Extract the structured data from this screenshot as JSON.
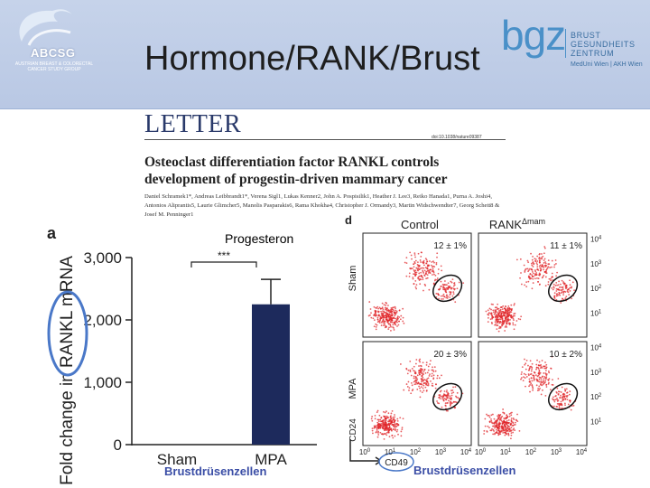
{
  "slide": {
    "title": "Hormone/RANK/Brust"
  },
  "logos": {
    "abcsg": {
      "name": "ABCSG",
      "subtitle": "AUSTRIAN BREAST & COLORECTAL CANCER STUDY GROUP"
    },
    "bgz": {
      "word": "bgz",
      "line1": "BRUST",
      "line2": "GESUNDHEITS",
      "line3": "ZENTRUM",
      "subtitle": "MedUni Wien | AKH Wien"
    }
  },
  "paper": {
    "section": "LETTER",
    "doi": "doi:10.1038/nature09387",
    "title": "Osteoclast differentiation factor RANKL controls development of progestin-driven mammary cancer",
    "authors": "Daniel Schramek1*, Andreas Leibbrandt1*, Verena Sigl1, Lukas Kenner2, John A. Pospisilik1, Heather J. Lee3, Reiko Hanada1, Purna A. Joshi4, Antonios Aliprantis5, Laurie Glimcher5, Manolis Pasparakis6, Rama Khokha4, Christopher J. Ormandy3, Martin Widschwendter7, Georg Schett8 & Josef M. Penninger1"
  },
  "annotations": {
    "progesteron": "Progesteron",
    "brust_left": "Brustdrüsenzellen",
    "brust_right": "Brustdrüsenzellen"
  },
  "colors": {
    "bar": "#1d2a5c",
    "highlight_ellipse": "#4a78c8",
    "dots": "#e0262a",
    "header_bg": "#c6d3ea",
    "label_blue": "#3b4ea6"
  },
  "chart_data": [
    {
      "type": "bar",
      "panel_label": "a",
      "categories": [
        "Sham",
        "MPA"
      ],
      "values": [
        0,
        2250
      ],
      "error": [
        0,
        400
      ],
      "ylabel": "Fold change in RANKL mRNA",
      "yticks": [
        "0",
        "1,000",
        "2,000",
        "3,000"
      ],
      "ytick_values": [
        0,
        1000,
        2000,
        3000
      ],
      "ylim": [
        0,
        3000
      ],
      "significance": "***"
    },
    {
      "type": "scatter",
      "panel_label": "d",
      "columns": [
        "Control",
        "RANK",
        "Δmam"
      ],
      "rows": [
        "Sham",
        "MPA"
      ],
      "quadrant_percentages": [
        "12 ± 1%",
        "11 ± 1%",
        "20 ± 3%",
        "10 ± 2%"
      ],
      "xlabel": "CD49",
      "ylabel": "CD24",
      "tick_base": "10",
      "tick_exps": [
        "0",
        "1",
        "2",
        "3",
        "4"
      ]
    }
  ]
}
